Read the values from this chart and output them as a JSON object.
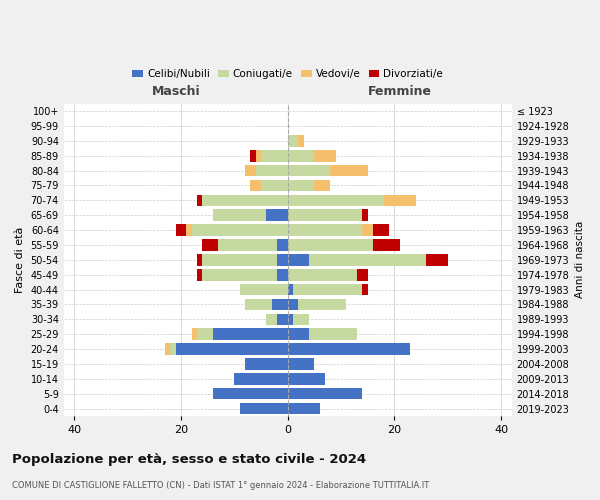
{
  "age_groups": [
    "0-4",
    "5-9",
    "10-14",
    "15-19",
    "20-24",
    "25-29",
    "30-34",
    "35-39",
    "40-44",
    "45-49",
    "50-54",
    "55-59",
    "60-64",
    "65-69",
    "70-74",
    "75-79",
    "80-84",
    "85-89",
    "90-94",
    "95-99",
    "100+"
  ],
  "birth_years": [
    "2019-2023",
    "2014-2018",
    "2009-2013",
    "2004-2008",
    "1999-2003",
    "1994-1998",
    "1989-1993",
    "1984-1988",
    "1979-1983",
    "1974-1978",
    "1969-1973",
    "1964-1968",
    "1959-1963",
    "1954-1958",
    "1949-1953",
    "1944-1948",
    "1939-1943",
    "1934-1938",
    "1929-1933",
    "1924-1928",
    "≤ 1923"
  ],
  "male": {
    "celibi": [
      9,
      14,
      10,
      8,
      21,
      14,
      2,
      3,
      0,
      2,
      2,
      2,
      0,
      4,
      0,
      0,
      0,
      0,
      0,
      0,
      0
    ],
    "coniugati": [
      0,
      0,
      0,
      0,
      1,
      3,
      2,
      5,
      9,
      14,
      14,
      11,
      18,
      10,
      16,
      5,
      6,
      5,
      0,
      0,
      0
    ],
    "vedovi": [
      0,
      0,
      0,
      0,
      1,
      1,
      0,
      0,
      0,
      0,
      0,
      0,
      1,
      0,
      0,
      2,
      2,
      1,
      0,
      0,
      0
    ],
    "divorziati": [
      0,
      0,
      0,
      0,
      0,
      0,
      0,
      0,
      0,
      1,
      1,
      3,
      2,
      0,
      1,
      0,
      0,
      1,
      0,
      0,
      0
    ]
  },
  "female": {
    "nubili": [
      6,
      14,
      7,
      5,
      23,
      4,
      1,
      2,
      1,
      0,
      4,
      0,
      0,
      0,
      0,
      0,
      0,
      0,
      0,
      0,
      0
    ],
    "coniugate": [
      0,
      0,
      0,
      0,
      0,
      9,
      3,
      9,
      13,
      13,
      22,
      16,
      14,
      14,
      18,
      5,
      8,
      5,
      2,
      0,
      0
    ],
    "vedove": [
      0,
      0,
      0,
      0,
      0,
      0,
      0,
      0,
      0,
      0,
      0,
      0,
      2,
      0,
      6,
      3,
      7,
      4,
      1,
      0,
      0
    ],
    "divorziate": [
      0,
      0,
      0,
      0,
      0,
      0,
      0,
      0,
      1,
      2,
      4,
      5,
      3,
      1,
      0,
      0,
      0,
      0,
      0,
      0,
      0
    ]
  },
  "color_celibi": "#4472c4",
  "color_coniugati": "#c5d9a0",
  "color_vedovi": "#f5c06e",
  "color_divorziati": "#c00000",
  "xlim": 42,
  "title": "Popolazione per età, sesso e stato civile - 2024",
  "subtitle": "COMUNE DI CASTIGLIONE FALLETTO (CN) - Dati ISTAT 1° gennaio 2024 - Elaborazione TUTTITALIA.IT",
  "ylabel": "Fasce di età",
  "ylabel_right": "Anni di nascita",
  "xlabel_left": "Maschi",
  "xlabel_right": "Femmine",
  "bg_color": "#f0f0f0",
  "plot_bg_color": "#ffffff"
}
